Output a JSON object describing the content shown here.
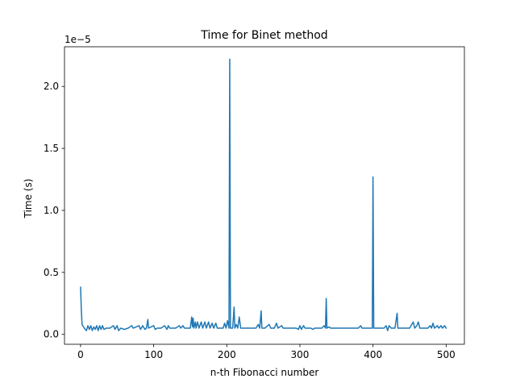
{
  "chart_data": {
    "type": "line",
    "title": "Time for Binet method",
    "xlabel": "n-th Fibonacci number",
    "ylabel": "Time (s)",
    "y_offset_label": "1e−5",
    "xlim": [
      -22,
      525
    ],
    "ylim": [
      -0.08,
      2.32
    ],
    "y_scale_note": "values in units of 1e-5 seconds",
    "xticks": [
      0,
      100,
      200,
      300,
      400,
      500
    ],
    "xtick_labels": [
      "0",
      "100",
      "200",
      "300",
      "400",
      "500"
    ],
    "yticks": [
      0.0,
      0.5,
      1.0,
      1.5,
      2.0
    ],
    "ytick_labels": [
      "0.0",
      "0.5",
      "1.0",
      "1.5",
      "2.0"
    ],
    "grid": false,
    "line_color": "#1f77b4",
    "series": [
      {
        "baseline": 0.05,
        "points": [
          [
            0,
            0.38
          ],
          [
            1,
            0.2
          ],
          [
            2,
            0.08
          ],
          [
            5,
            0.05
          ],
          [
            8,
            0.03
          ],
          [
            10,
            0.07
          ],
          [
            12,
            0.04
          ],
          [
            14,
            0.07
          ],
          [
            16,
            0.03
          ],
          [
            18,
            0.06
          ],
          [
            20,
            0.04
          ],
          [
            22,
            0.07
          ],
          [
            24,
            0.03
          ],
          [
            26,
            0.07
          ],
          [
            28,
            0.04
          ],
          [
            30,
            0.07
          ],
          [
            32,
            0.04
          ],
          [
            35,
            0.05
          ],
          [
            40,
            0.05
          ],
          [
            45,
            0.07
          ],
          [
            47,
            0.04
          ],
          [
            50,
            0.07
          ],
          [
            52,
            0.03
          ],
          [
            55,
            0.05
          ],
          [
            60,
            0.04
          ],
          [
            65,
            0.05
          ],
          [
            70,
            0.07
          ],
          [
            72,
            0.05
          ],
          [
            80,
            0.07
          ],
          [
            82,
            0.04
          ],
          [
            85,
            0.07
          ],
          [
            88,
            0.04
          ],
          [
            90,
            0.05
          ],
          [
            92,
            0.12
          ],
          [
            93,
            0.05
          ],
          [
            100,
            0.07
          ],
          [
            102,
            0.04
          ],
          [
            105,
            0.05
          ],
          [
            110,
            0.05
          ],
          [
            115,
            0.07
          ],
          [
            118,
            0.04
          ],
          [
            120,
            0.07
          ],
          [
            122,
            0.05
          ],
          [
            130,
            0.05
          ],
          [
            135,
            0.07
          ],
          [
            137,
            0.05
          ],
          [
            140,
            0.07
          ],
          [
            142,
            0.05
          ],
          [
            150,
            0.05
          ],
          [
            152,
            0.14
          ],
          [
            153,
            0.06
          ],
          [
            154,
            0.13
          ],
          [
            155,
            0.05
          ],
          [
            157,
            0.1
          ],
          [
            158,
            0.05
          ],
          [
            160,
            0.1
          ],
          [
            162,
            0.05
          ],
          [
            165,
            0.1
          ],
          [
            167,
            0.05
          ],
          [
            170,
            0.1
          ],
          [
            172,
            0.05
          ],
          [
            175,
            0.1
          ],
          [
            177,
            0.05
          ],
          [
            180,
            0.09
          ],
          [
            182,
            0.05
          ],
          [
            185,
            0.09
          ],
          [
            187,
            0.05
          ],
          [
            190,
            0.05
          ],
          [
            195,
            0.05
          ],
          [
            197,
            0.09
          ],
          [
            199,
            0.05
          ],
          [
            201,
            0.11
          ],
          [
            203,
            0.05
          ],
          [
            204,
            2.22
          ],
          [
            205,
            0.05
          ],
          [
            208,
            0.05
          ],
          [
            210,
            0.22
          ],
          [
            211,
            0.05
          ],
          [
            213,
            0.08
          ],
          [
            215,
            0.05
          ],
          [
            217,
            0.14
          ],
          [
            219,
            0.05
          ],
          [
            225,
            0.05
          ],
          [
            230,
            0.05
          ],
          [
            235,
            0.05
          ],
          [
            240,
            0.05
          ],
          [
            243,
            0.08
          ],
          [
            245,
            0.05
          ],
          [
            247,
            0.19
          ],
          [
            248,
            0.05
          ],
          [
            252,
            0.05
          ],
          [
            258,
            0.08
          ],
          [
            260,
            0.05
          ],
          [
            265,
            0.05
          ],
          [
            268,
            0.09
          ],
          [
            270,
            0.05
          ],
          [
            275,
            0.07
          ],
          [
            277,
            0.05
          ],
          [
            285,
            0.05
          ],
          [
            290,
            0.05
          ],
          [
            295,
            0.05
          ],
          [
            298,
            0.04
          ],
          [
            300,
            0.07
          ],
          [
            302,
            0.04
          ],
          [
            305,
            0.07
          ],
          [
            307,
            0.05
          ],
          [
            315,
            0.05
          ],
          [
            318,
            0.04
          ],
          [
            320,
            0.05
          ],
          [
            330,
            0.05
          ],
          [
            333,
            0.07
          ],
          [
            335,
            0.05
          ],
          [
            336,
            0.29
          ],
          [
            337,
            0.05
          ],
          [
            340,
            0.06
          ],
          [
            342,
            0.05
          ],
          [
            350,
            0.05
          ],
          [
            360,
            0.05
          ],
          [
            370,
            0.05
          ],
          [
            380,
            0.05
          ],
          [
            383,
            0.07
          ],
          [
            385,
            0.05
          ],
          [
            395,
            0.05
          ],
          [
            398,
            0.05
          ],
          [
            399,
            0.05
          ],
          [
            400,
            1.27
          ],
          [
            401,
            0.05
          ],
          [
            405,
            0.05
          ],
          [
            410,
            0.05
          ],
          [
            415,
            0.05
          ],
          [
            418,
            0.07
          ],
          [
            420,
            0.03
          ],
          [
            422,
            0.07
          ],
          [
            425,
            0.05
          ],
          [
            430,
            0.05
          ],
          [
            433,
            0.17
          ],
          [
            434,
            0.05
          ],
          [
            440,
            0.05
          ],
          [
            445,
            0.05
          ],
          [
            450,
            0.05
          ],
          [
            455,
            0.1
          ],
          [
            457,
            0.05
          ],
          [
            460,
            0.07
          ],
          [
            462,
            0.1
          ],
          [
            464,
            0.05
          ],
          [
            470,
            0.05
          ],
          [
            475,
            0.05
          ],
          [
            478,
            0.07
          ],
          [
            480,
            0.05
          ],
          [
            482,
            0.09
          ],
          [
            484,
            0.05
          ],
          [
            488,
            0.07
          ],
          [
            490,
            0.05
          ],
          [
            493,
            0.07
          ],
          [
            495,
            0.05
          ],
          [
            498,
            0.07
          ],
          [
            500,
            0.05
          ]
        ]
      }
    ]
  }
}
